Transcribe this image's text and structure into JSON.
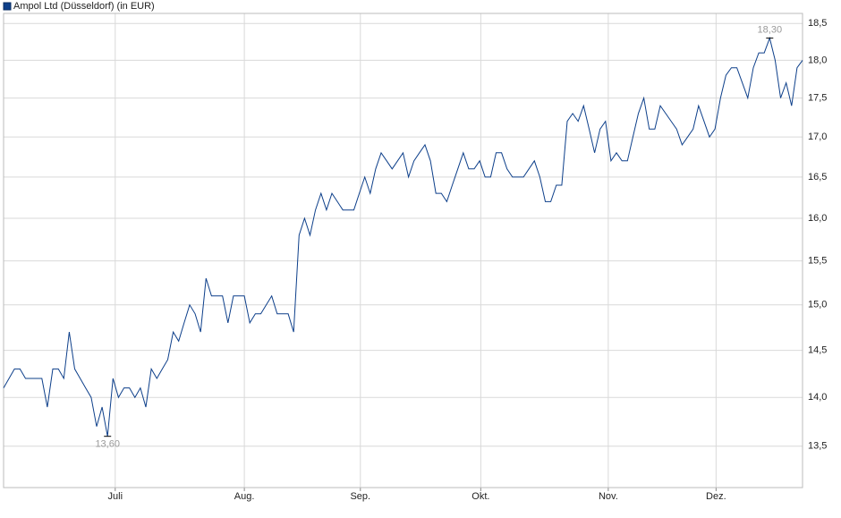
{
  "chart_data": {
    "type": "line",
    "title": "Ampol Ltd (Düsseldorf) (in EUR)",
    "log_scale": true,
    "grid": true,
    "color": "#0d3f8a",
    "series": [
      {
        "name": "Ampol Ltd (Düsseldorf) (in EUR)",
        "color": "#0d3f8a",
        "values": [
          14.1,
          14.2,
          14.3,
          14.3,
          14.2,
          14.2,
          14.2,
          14.2,
          13.9,
          14.3,
          14.3,
          14.2,
          14.7,
          14.3,
          14.2,
          14.1,
          14.0,
          13.7,
          13.9,
          13.6,
          14.2,
          14.0,
          14.1,
          14.1,
          14.0,
          14.1,
          13.9,
          14.3,
          14.2,
          14.3,
          14.4,
          14.7,
          14.6,
          14.8,
          15.0,
          14.9,
          14.7,
          15.3,
          15.1,
          15.1,
          15.1,
          14.8,
          15.1,
          15.1,
          15.1,
          14.8,
          14.9,
          14.9,
          15.0,
          15.1,
          14.9,
          14.9,
          14.9,
          14.7,
          15.8,
          16.0,
          15.8,
          16.1,
          16.3,
          16.1,
          16.3,
          16.2,
          16.1,
          16.1,
          16.1,
          16.3,
          16.5,
          16.3,
          16.6,
          16.8,
          16.7,
          16.6,
          16.7,
          16.8,
          16.5,
          16.7,
          16.8,
          16.9,
          16.7,
          16.3,
          16.3,
          16.2,
          16.4,
          16.6,
          16.8,
          16.6,
          16.6,
          16.7,
          16.5,
          16.5,
          16.8,
          16.8,
          16.6,
          16.5,
          16.5,
          16.5,
          16.6,
          16.7,
          16.5,
          16.2,
          16.2,
          16.4,
          16.4,
          17.2,
          17.3,
          17.2,
          17.4,
          17.1,
          16.8,
          17.1,
          17.2,
          16.7,
          16.8,
          16.7,
          16.7,
          17.0,
          17.3,
          17.5,
          17.1,
          17.1,
          17.4,
          17.3,
          17.2,
          17.1,
          16.9,
          17.0,
          17.1,
          17.4,
          17.2,
          17.0,
          17.1,
          17.5,
          17.8,
          17.9,
          17.9,
          17.7,
          17.5,
          17.9,
          18.1,
          18.1,
          18.3,
          18.0,
          17.5,
          17.7,
          17.4,
          17.9,
          18.0
        ]
      }
    ],
    "xlim": [
      0,
      146
    ],
    "xticks": [
      {
        "value": 20.4,
        "label": "Juli"
      },
      {
        "value": 44.0,
        "label": "Aug."
      },
      {
        "value": 65.2,
        "label": "Sep."
      },
      {
        "value": 87.2,
        "label": "Okt."
      },
      {
        "value": 110.5,
        "label": "Nov."
      },
      {
        "value": 130.2,
        "label": "Dez."
      }
    ],
    "ylim": [
      13.09,
      18.64
    ],
    "yticks": [
      {
        "value": 13.5,
        "label": "13,5"
      },
      {
        "value": 14,
        "label": "14,0"
      },
      {
        "value": 14.5,
        "label": "14,5"
      },
      {
        "value": 15,
        "label": "15,0"
      },
      {
        "value": 15.5,
        "label": "15,5"
      },
      {
        "value": 16,
        "label": "16,0"
      },
      {
        "value": 16.5,
        "label": "16,5"
      },
      {
        "value": 17,
        "label": "17,0"
      },
      {
        "value": 17.5,
        "label": "17,5"
      },
      {
        "value": 18,
        "label": "18,0"
      },
      {
        "value": 18.5,
        "label": "18,5"
      }
    ],
    "high": {
      "value": 18.3,
      "label": "18,30"
    },
    "low": {
      "value": 13.6,
      "label": "13,60"
    }
  }
}
